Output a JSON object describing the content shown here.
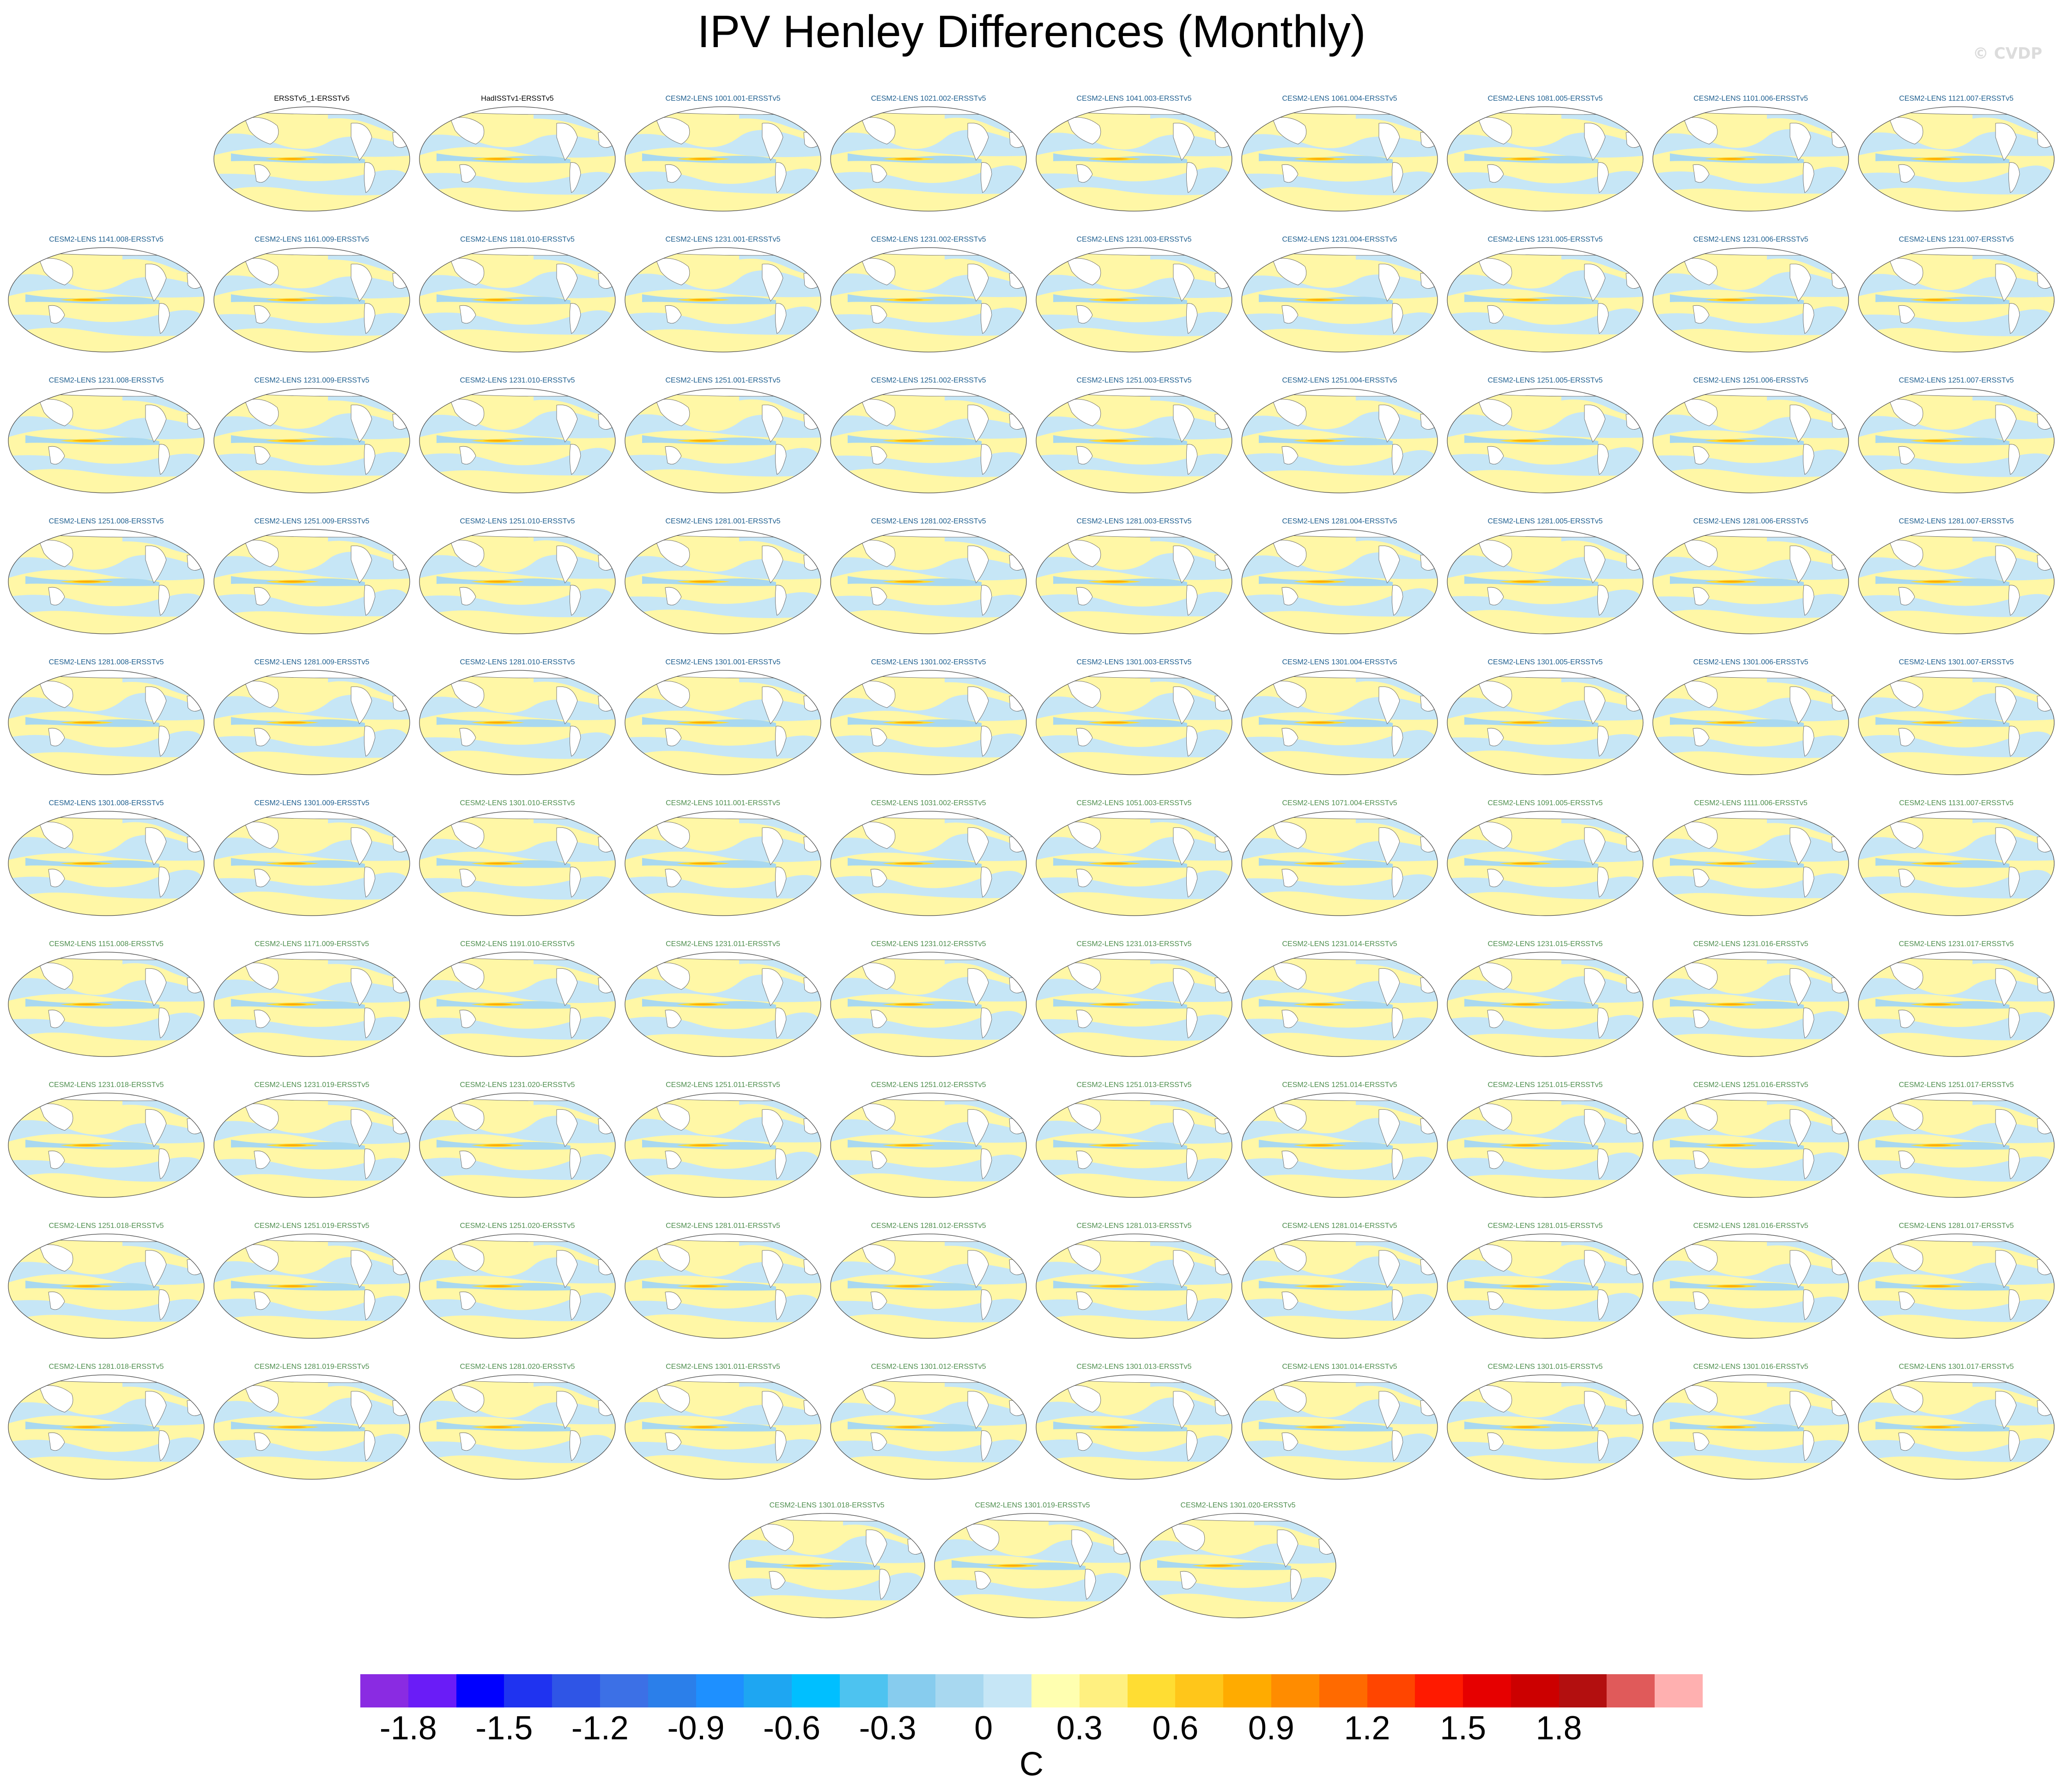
{
  "title": "IPV Henley Differences (Monthly)",
  "copyright": "© CVDP",
  "obs_panels": [
    "ERSSTv5_1-ERSSTv5",
    "HadISSTv1-ERSSTv5"
  ],
  "model_panels": [
    "CESM2-LENS 1001.001-ERSSTv5",
    "CESM2-LENS 1021.002-ERSSTv5",
    "CESM2-LENS 1041.003-ERSSTv5",
    "CESM2-LENS 1061.004-ERSSTv5",
    "CESM2-LENS 1081.005-ERSSTv5",
    "CESM2-LENS 1101.006-ERSSTv5",
    "CESM2-LENS 1121.007-ERSSTv5",
    "CESM2-LENS 1141.008-ERSSTv5",
    "CESM2-LENS 1161.009-ERSSTv5",
    "CESM2-LENS 1181.010-ERSSTv5",
    "CESM2-LENS 1231.001-ERSSTv5",
    "CESM2-LENS 1231.002-ERSSTv5",
    "CESM2-LENS 1231.003-ERSSTv5",
    "CESM2-LENS 1231.004-ERSSTv5",
    "CESM2-LENS 1231.005-ERSSTv5",
    "CESM2-LENS 1231.006-ERSSTv5",
    "CESM2-LENS 1231.007-ERSSTv5",
    "CESM2-LENS 1231.008-ERSSTv5",
    "CESM2-LENS 1231.009-ERSSTv5",
    "CESM2-LENS 1231.010-ERSSTv5",
    "CESM2-LENS 1251.001-ERSSTv5",
    "CESM2-LENS 1251.002-ERSSTv5",
    "CESM2-LENS 1251.003-ERSSTv5",
    "CESM2-LENS 1251.004-ERSSTv5",
    "CESM2-LENS 1251.005-ERSSTv5",
    "CESM2-LENS 1251.006-ERSSTv5",
    "CESM2-LENS 1251.007-ERSSTv5",
    "CESM2-LENS 1251.008-ERSSTv5",
    "CESM2-LENS 1251.009-ERSSTv5",
    "CESM2-LENS 1251.010-ERSSTv5",
    "CESM2-LENS 1281.001-ERSSTv5",
    "CESM2-LENS 1281.002-ERSSTv5",
    "CESM2-LENS 1281.003-ERSSTv5",
    "CESM2-LENS 1281.004-ERSSTv5",
    "CESM2-LENS 1281.005-ERSSTv5",
    "CESM2-LENS 1281.006-ERSSTv5",
    "CESM2-LENS 1281.007-ERSSTv5",
    "CESM2-LENS 1281.008-ERSSTv5",
    "CESM2-LENS 1281.009-ERSSTv5",
    "CESM2-LENS 1281.010-ERSSTv5",
    "CESM2-LENS 1301.001-ERSSTv5",
    "CESM2-LENS 1301.002-ERSSTv5",
    "CESM2-LENS 1301.003-ERSSTv5",
    "CESM2-LENS 1301.004-ERSSTv5",
    "CESM2-LENS 1301.005-ERSSTv5",
    "CESM2-LENS 1301.006-ERSSTv5",
    "CESM2-LENS 1301.007-ERSSTv5",
    "CESM2-LENS 1301.008-ERSSTv5",
    "CESM2-LENS 1301.009-ERSSTv5",
    "CESM2-LENS 1301.010-ERSSTv5",
    "CESM2-LENS 1011.001-ERSSTv5",
    "CESM2-LENS 1031.002-ERSSTv5",
    "CESM2-LENS 1051.003-ERSSTv5",
    "CESM2-LENS 1071.004-ERSSTv5",
    "CESM2-LENS 1091.005-ERSSTv5",
    "CESM2-LENS 1111.006-ERSSTv5",
    "CESM2-LENS 1131.007-ERSSTv5",
    "CESM2-LENS 1151.008-ERSSTv5",
    "CESM2-LENS 1171.009-ERSSTv5",
    "CESM2-LENS 1191.010-ERSSTv5",
    "CESM2-LENS 1231.011-ERSSTv5",
    "CESM2-LENS 1231.012-ERSSTv5",
    "CESM2-LENS 1231.013-ERSSTv5",
    "CESM2-LENS 1231.014-ERSSTv5",
    "CESM2-LENS 1231.015-ERSSTv5",
    "CESM2-LENS 1231.016-ERSSTv5",
    "CESM2-LENS 1231.017-ERSSTv5",
    "CESM2-LENS 1231.018-ERSSTv5",
    "CESM2-LENS 1231.019-ERSSTv5",
    "CESM2-LENS 1231.020-ERSSTv5",
    "CESM2-LENS 1251.011-ERSSTv5",
    "CESM2-LENS 1251.012-ERSSTv5",
    "CESM2-LENS 1251.013-ERSSTv5",
    "CESM2-LENS 1251.014-ERSSTv5",
    "CESM2-LENS 1251.015-ERSSTv5",
    "CESM2-LENS 1251.016-ERSSTv5",
    "CESM2-LENS 1251.017-ERSSTv5",
    "CESM2-LENS 1251.018-ERSSTv5",
    "CESM2-LENS 1251.019-ERSSTv5",
    "CESM2-LENS 1251.020-ERSSTv5",
    "CESM2-LENS 1281.011-ERSSTv5",
    "CESM2-LENS 1281.012-ERSSTv5",
    "CESM2-LENS 1281.013-ERSSTv5",
    "CESM2-LENS 1281.014-ERSSTv5",
    "CESM2-LENS 1281.015-ERSSTv5",
    "CESM2-LENS 1281.016-ERSSTv5",
    "CESM2-LENS 1281.017-ERSSTv5",
    "CESM2-LENS 1281.018-ERSSTv5",
    "CESM2-LENS 1281.019-ERSSTv5",
    "CESM2-LENS 1281.020-ERSSTv5",
    "CESM2-LENS 1301.011-ERSSTv5",
    "CESM2-LENS 1301.012-ERSSTv5",
    "CESM2-LENS 1301.013-ERSSTv5",
    "CESM2-LENS 1301.014-ERSSTv5",
    "CESM2-LENS 1301.015-ERSSTv5",
    "CESM2-LENS 1301.016-ERSSTv5",
    "CESM2-LENS 1301.017-ERSSTv5",
    "CESM2-LENS 1301.018-ERSSTv5",
    "CESM2-LENS 1301.019-ERSSTv5",
    "CESM2-LENS 1301.020-ERSSTv5"
  ],
  "label_colors": {
    "obs": "#000000",
    "smbb": "#1f5f8f",
    "cmip6": "#4f8f4f"
  },
  "colorbar": {
    "colors": [
      "#8a2be2",
      "#6a1cf7",
      "#0000ff",
      "#1f33f0",
      "#2f55e6",
      "#3c70e6",
      "#2b7fea",
      "#1e90ff",
      "#1ea6f2",
      "#00bfff",
      "#4dc3f0",
      "#87ccee",
      "#a8d8f0",
      "#c6e6f6",
      "#ffffb0",
      "#fff080",
      "#ffdd33",
      "#ffc61a",
      "#ffab00",
      "#ff8c00",
      "#ff6a00",
      "#ff4500",
      "#ff1a00",
      "#e60000",
      "#cc0000",
      "#b30f0f",
      "#e05a5a",
      "#ffb0b0"
    ],
    "labels": [
      "-1.8",
      "-1.5",
      "-1.2",
      "-0.9",
      "-0.6",
      "-0.3",
      "0",
      "0.3",
      "0.6",
      "0.9",
      "1.2",
      "1.5",
      "1.8"
    ],
    "units": "C"
  }
}
